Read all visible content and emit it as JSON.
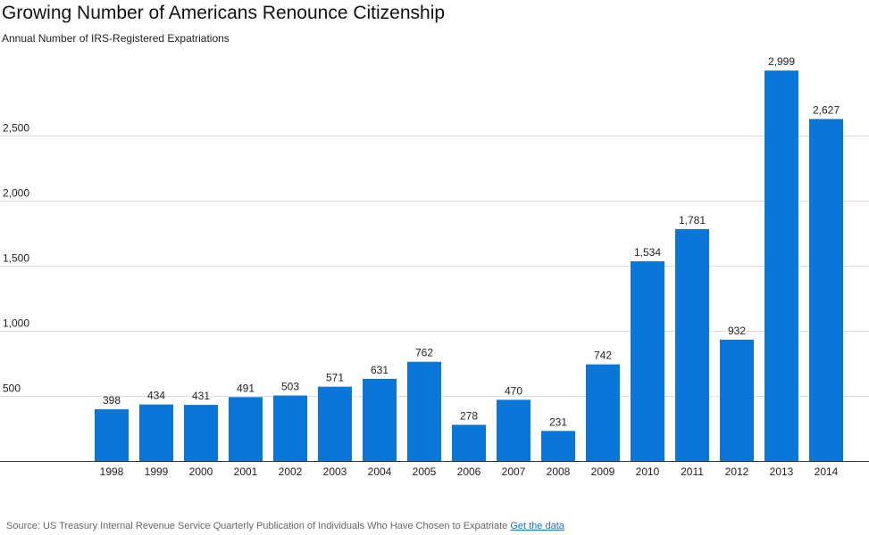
{
  "header": {
    "title": "Growing Number of Americans Renounce Citizenship",
    "subtitle": "Annual Number of IRS-Registered Expatriations"
  },
  "footer": {
    "source_text": "Source: US Treasury Internal Revenue Service Quarterly Publication of Individuals Who Have Chosen to Expatriate",
    "link_label": "Get the data"
  },
  "chart_data": {
    "type": "bar",
    "title": "Growing Number of Americans Renounce Citizenship",
    "subtitle": "Annual Number of IRS-Registered Expatriations",
    "xlabel": "",
    "ylabel": "",
    "categories": [
      "1998",
      "1999",
      "2000",
      "2001",
      "2002",
      "2003",
      "2004",
      "2005",
      "2006",
      "2007",
      "2008",
      "2009",
      "2010",
      "2011",
      "2012",
      "2013",
      "2014"
    ],
    "values": [
      398,
      434,
      431,
      491,
      503,
      571,
      631,
      762,
      278,
      470,
      231,
      742,
      1534,
      1781,
      932,
      2999,
      2627
    ],
    "data_labels": [
      "398",
      "434",
      "431",
      "491",
      "503",
      "571",
      "631",
      "762",
      "278",
      "470",
      "231",
      "742",
      "1,534",
      "1,781",
      "932",
      "2,999",
      "2,627"
    ],
    "yticks": [
      500,
      1000,
      1500,
      2000,
      2500
    ],
    "ytick_labels": [
      "500",
      "1,000",
      "1,500",
      "2,000",
      "2,500"
    ],
    "ylim": [
      0,
      3000
    ],
    "grid": true,
    "bar_color": "#0a77d8"
  }
}
